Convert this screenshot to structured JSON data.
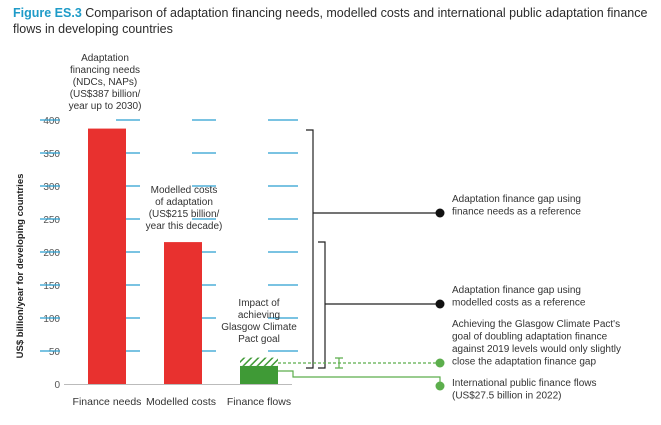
{
  "figure": {
    "label": "Figure ES.3",
    "title": "Comparison of adaptation financing needs, modelled costs and international public adaptation finance flows in developing countries"
  },
  "chart_data": {
    "type": "bar",
    "categories": [
      "Finance needs",
      "Modelled costs",
      "Finance flows"
    ],
    "values": [
      387,
      215,
      27.5
    ],
    "goal_value": 40,
    "ylabel": "US$ billion/year for developing countries",
    "ylim": [
      0,
      400
    ],
    "yticks": [
      0,
      50,
      100,
      150,
      200,
      250,
      300,
      350,
      400
    ],
    "grid": false,
    "colors": {
      "needs": "#e8312f",
      "costs": "#e8312f",
      "flows": "#3f9a36",
      "goal_hatch": "#3f9a36",
      "tick_line": "#2b9fd0",
      "legend_dot": "#111111",
      "green_dot": "#5cae4c"
    },
    "bar_labels": [
      [
        "Adaptation",
        "financing needs",
        "(NDCs, NAPs)",
        "(US$387 billion/",
        "year up to 2030)"
      ],
      [
        "Modelled costs",
        "of adaptation",
        "(US$215 billion/",
        "year this decade)"
      ],
      [
        "Impact of",
        "achieving",
        "Glasgow Climate",
        "Pact goal"
      ]
    ],
    "annotations": [
      {
        "lines": [
          "Adaptation finance gap using",
          "finance needs as a reference"
        ],
        "color": "#111111"
      },
      {
        "lines": [
          "Adaptation finance gap using",
          "modelled costs as a reference"
        ],
        "color": "#111111"
      },
      {
        "lines": [
          "Achieving the Glasgow Climate Pact's",
          "goal of doubling adaptation finance",
          "against 2019 levels would only slightly",
          "close the adaptation finance gap"
        ],
        "color": "#5cae4c"
      },
      {
        "lines": [
          "International public finance flows",
          "(US$27.5 billion in 2022)"
        ],
        "color": "#5cae4c"
      }
    ]
  }
}
